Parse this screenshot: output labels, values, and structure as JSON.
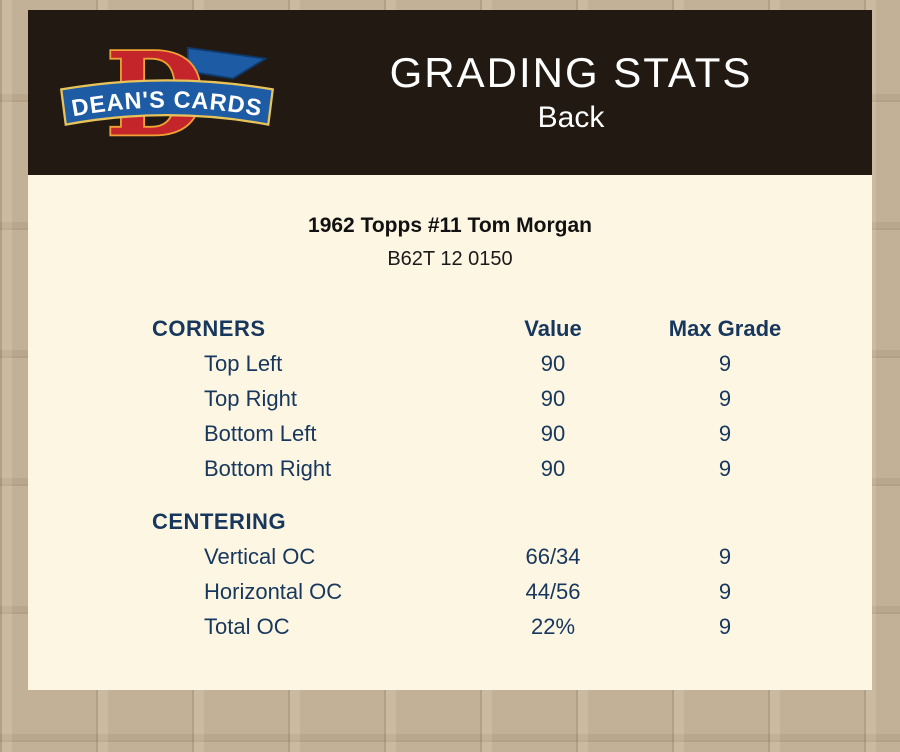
{
  "colors": {
    "page_bg": "#c3b197",
    "header_bg": "#221a12",
    "panel_bg": "#fdf6e3",
    "accent_navy": "#17375d",
    "title_text": "#ffffff",
    "card_title_text": "#111111",
    "logo_red": "#c4252b",
    "logo_gold": "#efa135",
    "logo_blue": "#1d5ca5"
  },
  "header": {
    "title": "GRADING STATS",
    "subtitle": "Back",
    "logo": {
      "brand": "DEAN'S CARDS",
      "letter": "D"
    }
  },
  "card": {
    "title": "1962 Topps #11 Tom Morgan",
    "code": "B62T 12 0150"
  },
  "table": {
    "columns": [
      "Value",
      "Max Grade"
    ],
    "sections": [
      {
        "name": "CORNERS",
        "rows": [
          {
            "label": "Top Left",
            "value": "90",
            "max_grade": "9"
          },
          {
            "label": "Top Right",
            "value": "90",
            "max_grade": "9"
          },
          {
            "label": "Bottom Left",
            "value": "90",
            "max_grade": "9"
          },
          {
            "label": "Bottom Right",
            "value": "90",
            "max_grade": "9"
          }
        ]
      },
      {
        "name": "CENTERING",
        "rows": [
          {
            "label": "Vertical OC",
            "value": "66/34",
            "max_grade": "9"
          },
          {
            "label": "Horizontal OC",
            "value": "44/56",
            "max_grade": "9"
          },
          {
            "label": "Total OC",
            "value": "22%",
            "max_grade": "9"
          }
        ]
      }
    ]
  }
}
